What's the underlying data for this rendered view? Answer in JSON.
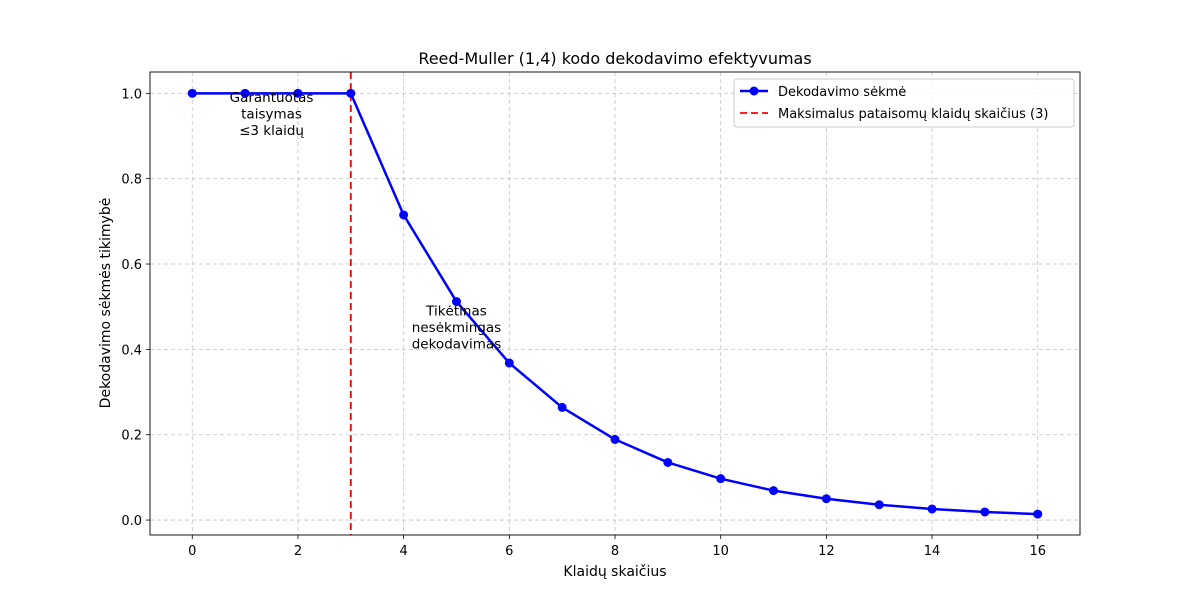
{
  "chart_data": {
    "type": "line",
    "title": "Reed-Muller (1,4) kodo dekodavimo efektyvumas",
    "xlabel": "Klaidų skaičius",
    "ylabel": "Dekodavimo sėkmės tikimybė",
    "xlim": [
      -0.8,
      16.8
    ],
    "ylim": [
      -0.035,
      1.05
    ],
    "xticks": [
      0,
      2,
      4,
      6,
      8,
      10,
      12,
      14,
      16
    ],
    "yticks": [
      0.0,
      0.2,
      0.4,
      0.6,
      0.8,
      1.0
    ],
    "grid": true,
    "legend_position": "top-right",
    "series": [
      {
        "name": "Dekodavimo sėkmė",
        "color": "#0000ff",
        "marker": "circle",
        "x": [
          0,
          1,
          2,
          3,
          4,
          5,
          6,
          7,
          8,
          9,
          10,
          11,
          12,
          13,
          14,
          15,
          16
        ],
        "y": [
          1.0,
          1.0,
          1.0,
          1.0,
          0.715,
          0.512,
          0.368,
          0.264,
          0.189,
          0.135,
          0.097,
          0.069,
          0.05,
          0.036,
          0.026,
          0.019,
          0.014
        ]
      }
    ],
    "reference_lines": [
      {
        "name": "Maksimalus pataisomų klaidų skaičius (3)",
        "orientation": "vertical",
        "x": 3,
        "color": "#ff0000",
        "style": "dashed"
      }
    ],
    "annotations": [
      {
        "lines": [
          "Garantuotas",
          "taisymas",
          "≤3 klaidų"
        ],
        "x": 1.5,
        "y": 0.95
      },
      {
        "lines": [
          "Tikėtinas",
          "nesėkmingas",
          "dekodavimas"
        ],
        "x": 5,
        "y": 0.45
      }
    ]
  }
}
